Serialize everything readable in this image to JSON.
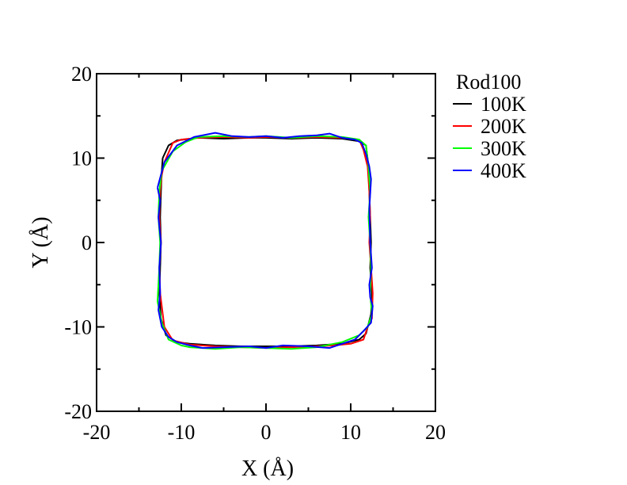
{
  "chart_data": {
    "type": "line",
    "title": "",
    "xlabel": "X (Å)",
    "ylabel": "Y (Å)",
    "xlim": [
      -20,
      20
    ],
    "ylim": [
      -20,
      20
    ],
    "xticks": [
      -20,
      -10,
      0,
      10,
      20
    ],
    "yticks": [
      -20,
      -10,
      0,
      10,
      20
    ],
    "xtick_labels": [
      "-20",
      "-10",
      "0",
      "10",
      "20"
    ],
    "ytick_labels": [
      "-20",
      "-10",
      "0",
      "10",
      "20"
    ],
    "grid": false,
    "legend": {
      "title": "Rod100",
      "placement": "right"
    },
    "series": [
      {
        "name": "100K",
        "color": "#000000",
        "x": [
          -12.2,
          -11.5,
          -10.5,
          -8.0,
          -5.0,
          -2.0,
          0.0,
          3.0,
          6.0,
          9.0,
          11.0,
          11.8,
          12.1,
          12.2,
          12.3,
          12.4,
          12.3,
          12.5,
          12.4,
          11.8,
          11.0,
          9.0,
          6.0,
          3.0,
          0.0,
          -3.0,
          -6.0,
          -9.0,
          -10.5,
          -11.8,
          -12.4,
          -12.6,
          -12.5,
          -12.4,
          -12.5,
          -12.4,
          -12.3,
          -12.2
        ],
        "y": [
          10.0,
          11.5,
          12.1,
          12.4,
          12.3,
          12.4,
          12.4,
          12.3,
          12.4,
          12.3,
          12.0,
          11.5,
          9.0,
          6.0,
          3.0,
          0.0,
          -3.0,
          -6.0,
          -8.5,
          -10.8,
          -11.5,
          -12.0,
          -12.2,
          -12.3,
          -12.3,
          -12.3,
          -12.2,
          -12.0,
          -11.8,
          -11.0,
          -9.0,
          -6.0,
          -3.0,
          0.0,
          3.0,
          6.0,
          8.5,
          10.0
        ]
      },
      {
        "name": "200K",
        "color": "#ff0000",
        "x": [
          -12.0,
          -11.0,
          -10.0,
          -8.0,
          -5.0,
          -2.0,
          0.0,
          3.0,
          6.0,
          9.0,
          11.0,
          11.5,
          12.0,
          12.2,
          12.3,
          12.2,
          12.4,
          12.6,
          12.5,
          12.0,
          11.5,
          10.0,
          8.0,
          6.0,
          3.0,
          0.0,
          -3.0,
          -6.0,
          -9.0,
          -11.0,
          -12.0,
          -12.5,
          -12.6,
          -12.4,
          -12.6,
          -12.5,
          -12.3,
          -12.0
        ],
        "y": [
          9.5,
          11.8,
          12.2,
          12.4,
          12.5,
          12.4,
          12.5,
          12.4,
          12.5,
          12.4,
          12.2,
          11.0,
          9.0,
          6.0,
          3.0,
          0.0,
          -3.0,
          -6.0,
          -9.0,
          -10.0,
          -11.5,
          -12.0,
          -12.2,
          -12.3,
          -12.4,
          -12.5,
          -12.4,
          -12.3,
          -12.1,
          -11.6,
          -10.0,
          -6.0,
          -3.0,
          0.0,
          3.0,
          6.0,
          8.0,
          9.5
        ]
      },
      {
        "name": "300K",
        "color": "#00ff00",
        "x": [
          -12.3,
          -11.0,
          -9.5,
          -8.0,
          -5.0,
          -2.0,
          0.0,
          3.0,
          6.0,
          9.0,
          11.0,
          11.8,
          12.1,
          12.3,
          12.1,
          12.3,
          12.4,
          12.3,
          12.5,
          12.0,
          11.0,
          9.0,
          6.0,
          3.0,
          0.0,
          -3.0,
          -6.0,
          -9.0,
          -10.0,
          -11.5,
          -12.3,
          -12.8,
          -12.6,
          -12.5,
          -12.7,
          -12.6,
          -12.3
        ],
        "y": [
          8.5,
          10.8,
          11.9,
          12.5,
          12.6,
          12.5,
          12.6,
          12.4,
          12.6,
          12.5,
          12.2,
          11.5,
          9.0,
          6.0,
          3.0,
          0.0,
          -3.0,
          -6.0,
          -8.5,
          -10.0,
          -11.0,
          -11.8,
          -12.4,
          -12.6,
          -12.5,
          -12.4,
          -12.6,
          -12.4,
          -12.2,
          -11.5,
          -9.5,
          -7.0,
          -3.0,
          0.0,
          3.0,
          6.0,
          8.5
        ]
      },
      {
        "name": "400K",
        "color": "#0000ff",
        "x": [
          -12.8,
          -12.0,
          -10.5,
          -8.5,
          -6.0,
          -4.0,
          -2.0,
          0.0,
          2.0,
          4.0,
          6.0,
          7.5,
          9.0,
          10.5,
          11.3,
          11.8,
          12.2,
          12.4,
          12.2,
          12.3,
          12.5,
          12.2,
          12.3,
          12.6,
          12.4,
          11.5,
          10.5,
          9.0,
          7.5,
          5.0,
          2.0,
          0.0,
          -2.0,
          -5.0,
          -7.5,
          -9.0,
          -10.5,
          -11.5,
          -12.3,
          -12.7,
          -12.5,
          -12.6,
          -12.4,
          -12.7,
          -12.5,
          -12.8
        ],
        "y": [
          6.5,
          9.5,
          11.5,
          12.5,
          13.0,
          12.6,
          12.5,
          12.6,
          12.4,
          12.6,
          12.7,
          12.9,
          12.4,
          12.2,
          11.8,
          10.5,
          9.0,
          7.5,
          4.0,
          0.0,
          -3.0,
          -5.0,
          -6.5,
          -7.5,
          -9.5,
          -10.5,
          -11.5,
          -12.0,
          -12.5,
          -12.3,
          -12.2,
          -12.5,
          -12.3,
          -12.4,
          -12.5,
          -12.2,
          -11.8,
          -11.2,
          -10.0,
          -8.0,
          -6.0,
          -3.0,
          0.0,
          3.0,
          5.0,
          6.5
        ]
      }
    ]
  }
}
